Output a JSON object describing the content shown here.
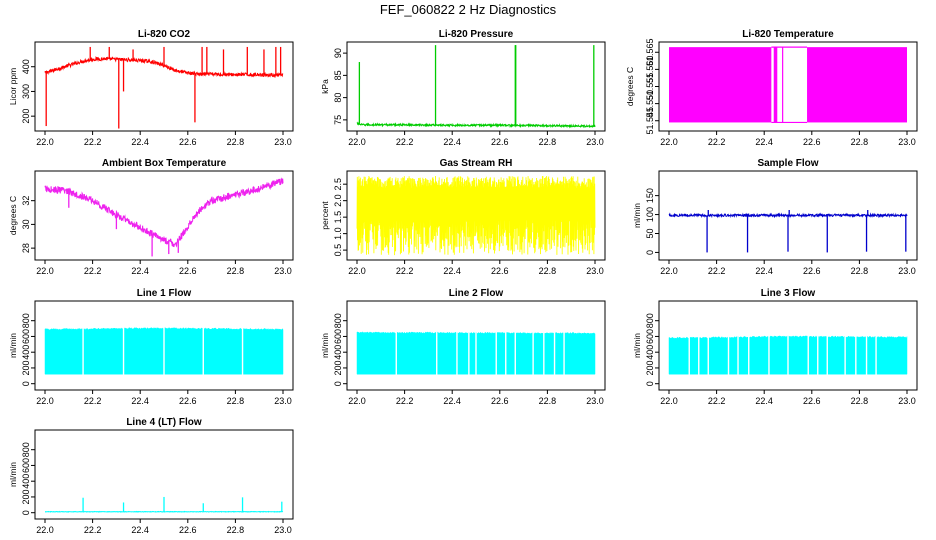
{
  "title": "FEF_060822  2 Hz Diagnostics",
  "chart_data": [
    {
      "type": "line",
      "title": "Li-820 CO2",
      "xlabel": "",
      "ylabel": "Licor ppm",
      "color": "#ff0000",
      "xlim": [
        22.0,
        23.0
      ],
      "ylim": [
        140,
        500
      ],
      "xticks": [
        "22.0",
        "22.2",
        "22.4",
        "22.6",
        "22.8",
        "23.0"
      ],
      "yticks": [
        {
          "v": 200,
          "l": "200"
        },
        {
          "v": 300,
          "l": "300"
        },
        {
          "v": 400,
          "l": "400"
        }
      ],
      "style": "noisy",
      "series": [
        {
          "name": "CO2",
          "x": [
            22.0,
            22.05,
            22.1,
            22.15,
            22.2,
            22.25,
            22.3,
            22.35,
            22.4,
            22.45,
            22.5,
            22.55,
            22.6,
            22.65,
            22.7,
            22.8,
            22.9,
            23.0
          ],
          "y": [
            375,
            390,
            405,
            420,
            430,
            432,
            430,
            428,
            425,
            420,
            405,
            385,
            375,
            370,
            370,
            368,
            368,
            366
          ]
        }
      ],
      "band": 14,
      "spikes": [
        {
          "x": 22.005,
          "y": 160
        },
        {
          "x": 22.31,
          "y": 150
        },
        {
          "x": 22.33,
          "y": 300
        },
        {
          "x": 22.63,
          "y": 175
        },
        {
          "x": 22.19,
          "y": 480
        },
        {
          "x": 22.27,
          "y": 480
        },
        {
          "x": 22.37,
          "y": 470
        },
        {
          "x": 22.5,
          "y": 480
        },
        {
          "x": 22.66,
          "y": 480
        },
        {
          "x": 22.68,
          "y": 480
        },
        {
          "x": 22.75,
          "y": 470
        },
        {
          "x": 22.85,
          "y": 480
        },
        {
          "x": 22.92,
          "y": 470
        },
        {
          "x": 22.97,
          "y": 480
        },
        {
          "x": 22.99,
          "y": 480
        }
      ]
    },
    {
      "type": "line",
      "title": "Li-820 Pressure",
      "xlabel": "",
      "ylabel": "kPa",
      "color": "#00cc00",
      "xlim": [
        22.0,
        23.0
      ],
      "ylim": [
        72.5,
        92.5
      ],
      "xticks": [
        "22.0",
        "22.2",
        "22.4",
        "22.6",
        "22.8",
        "23.0"
      ],
      "yticks": [
        {
          "v": 75,
          "l": "75"
        },
        {
          "v": 80,
          "l": "80"
        },
        {
          "v": 85,
          "l": "85"
        },
        {
          "v": 90,
          "l": "90"
        }
      ],
      "style": "noisy",
      "series": [
        {
          "name": "Pressure",
          "x": [
            22.0,
            22.02,
            22.2,
            22.4,
            22.6,
            22.8,
            23.0
          ],
          "y": [
            74.2,
            73.9,
            73.9,
            73.8,
            73.8,
            73.7,
            73.6
          ]
        }
      ],
      "band": 0.4,
      "spikes": [
        {
          "x": 22.01,
          "y": 88.0
        },
        {
          "x": 22.33,
          "y": 91.8
        },
        {
          "x": 22.665,
          "y": 91.8
        },
        {
          "x": 22.667,
          "y": 91.8
        },
        {
          "x": 22.995,
          "y": 91.8
        }
      ]
    },
    {
      "type": "area",
      "title": "Li-820 Temperature",
      "xlabel": "",
      "ylabel": "degrees C",
      "color": "#ff00ff",
      "xlim": [
        22.0,
        23.0
      ],
      "ylim": [
        51.542,
        51.568
      ],
      "xticks": [
        "22.0",
        "22.2",
        "22.4",
        "22.6",
        "22.8",
        "23.0"
      ],
      "yticks": [
        {
          "v": 51.545,
          "l": "51.545"
        },
        {
          "v": 51.55,
          "l": "51.550"
        },
        {
          "v": 51.555,
          "l": "51.555"
        },
        {
          "v": 51.56,
          "l": "51.560"
        },
        {
          "v": 51.565,
          "l": "51.565"
        }
      ],
      "style": "blocks",
      "blocks": [
        {
          "x0": 22.0,
          "x1": 22.43,
          "y0": 51.5445,
          "y1": 51.5665
        },
        {
          "x0": 22.44,
          "x1": 22.455,
          "y0": 51.5445,
          "y1": 51.5665
        },
        {
          "x0": 22.475,
          "x1": 22.48,
          "y0": 51.5445,
          "y1": 51.5665
        },
        {
          "x0": 22.58,
          "x1": 23.0,
          "y0": 51.5445,
          "y1": 51.5665
        }
      ],
      "hlines": [
        {
          "x0": 22.43,
          "x1": 22.58,
          "y": 51.5665
        },
        {
          "x0": 22.43,
          "x1": 22.58,
          "y": 51.5445
        }
      ]
    },
    {
      "type": "line",
      "title": "Ambient Box Temperature",
      "xlabel": "",
      "ylabel": "degrees C",
      "color": "#ee22ee",
      "xlim": [
        22.0,
        23.0
      ],
      "ylim": [
        27.0,
        34.5
      ],
      "xticks": [
        "22.0",
        "22.2",
        "22.4",
        "22.6",
        "22.8",
        "23.0"
      ],
      "yticks": [
        {
          "v": 28,
          "l": "28"
        },
        {
          "v": 30,
          "l": "30"
        },
        {
          "v": 32,
          "l": "32"
        }
      ],
      "style": "noisy",
      "series": [
        {
          "name": "Box temperature",
          "x": [
            22.0,
            22.1,
            22.2,
            22.3,
            22.4,
            22.5,
            22.55,
            22.6,
            22.65,
            22.7,
            22.8,
            22.9,
            23.0
          ],
          "y": [
            33.0,
            32.8,
            32.0,
            30.8,
            29.7,
            28.7,
            28.3,
            29.8,
            31.2,
            32.0,
            32.5,
            33.0,
            33.7
          ]
        }
      ],
      "band": 0.6,
      "spikes": [
        {
          "x": 22.45,
          "y": 27.3
        },
        {
          "x": 22.52,
          "y": 27.5
        },
        {
          "x": 22.56,
          "y": 27.6
        },
        {
          "x": 22.1,
          "y": 31.4
        },
        {
          "x": 22.3,
          "y": 29.6
        }
      ]
    },
    {
      "type": "line",
      "title": "Gas Stream RH",
      "xlabel": "",
      "ylabel": "percent",
      "color": "#ffff00",
      "xlim": [
        22.0,
        23.0
      ],
      "ylim": [
        0.2,
        2.9
      ],
      "xticks": [
        "22.0",
        "22.2",
        "22.4",
        "22.6",
        "22.8",
        "23.0"
      ],
      "yticks": [
        {
          "v": 0.5,
          "l": "0.5"
        },
        {
          "v": 1.0,
          "l": "1.0"
        },
        {
          "v": 1.5,
          "l": "1.5"
        },
        {
          "v": 2.0,
          "l": "2.0"
        },
        {
          "v": 2.5,
          "l": "2.5"
        }
      ],
      "style": "dense",
      "range": [
        0.35,
        2.75
      ]
    },
    {
      "type": "line",
      "title": "Sample Flow",
      "xlabel": "",
      "ylabel": "ml/min",
      "color": "#0000cc",
      "xlim": [
        22.0,
        23.0
      ],
      "ylim": [
        -20,
        215
      ],
      "xticks": [
        "22.0",
        "22.2",
        "22.4",
        "22.6",
        "22.8",
        "23.0"
      ],
      "yticks": [
        {
          "v": 0,
          "l": "0"
        },
        {
          "v": 50,
          "l": "50"
        },
        {
          "v": 100,
          "l": "100"
        },
        {
          "v": 150,
          "l": "150"
        }
      ],
      "style": "noisy",
      "series": [
        {
          "name": "Sample flow",
          "x": [
            22.0,
            23.0
          ],
          "y": [
            98,
            98
          ]
        }
      ],
      "band": 6,
      "spikes": [
        {
          "x": 22.16,
          "y": 0
        },
        {
          "x": 22.33,
          "y": 0
        },
        {
          "x": 22.5,
          "y": 2
        },
        {
          "x": 22.665,
          "y": 0
        },
        {
          "x": 22.83,
          "y": 2
        },
        {
          "x": 22.995,
          "y": 2
        },
        {
          "x": 22.165,
          "y": 112
        },
        {
          "x": 22.505,
          "y": 112
        },
        {
          "x": 22.835,
          "y": 112
        }
      ]
    },
    {
      "type": "area",
      "title": "Line 1 Flow",
      "xlabel": "",
      "ylabel": "ml/min",
      "color": "#00ffff",
      "xlim": [
        22.0,
        23.0
      ],
      "ylim": [
        -80,
        1050
      ],
      "xticks": [
        "22.0",
        "22.2",
        "22.4",
        "22.6",
        "22.8",
        "23.0"
      ],
      "yticks": [
        {
          "v": 0,
          "l": "0"
        },
        {
          "v": 200,
          "l": "200"
        },
        {
          "v": 400,
          "l": "400"
        },
        {
          "v": 600,
          "l": "600"
        },
        {
          "v": 800,
          "l": "800"
        }
      ],
      "style": "filled",
      "top": [
        {
          "x": 22.0,
          "y": 690
        },
        {
          "x": 22.5,
          "y": 705
        },
        {
          "x": 23.0,
          "y": 690
        }
      ],
      "base": 120,
      "gaps": [
        22.16,
        22.33,
        22.5,
        22.665,
        22.83
      ],
      "spikes": []
    },
    {
      "type": "area",
      "title": "Line 2 Flow",
      "xlabel": "",
      "ylabel": "ml/min",
      "color": "#00ffff",
      "xlim": [
        22.0,
        23.0
      ],
      "ylim": [
        -80,
        1050
      ],
      "xticks": [
        "22.0",
        "22.2",
        "22.4",
        "22.6",
        "22.8",
        "23.0"
      ],
      "yticks": [
        {
          "v": 0,
          "l": "0"
        },
        {
          "v": 200,
          "l": "200"
        },
        {
          "v": 400,
          "l": "400"
        },
        {
          "v": 600,
          "l": "600"
        },
        {
          "v": 800,
          "l": "800"
        }
      ],
      "style": "filled",
      "top": [
        {
          "x": 22.0,
          "y": 650
        },
        {
          "x": 23.0,
          "y": 640
        }
      ],
      "base": 120,
      "gaps": [
        22.165,
        22.335,
        22.42,
        22.47,
        22.5,
        22.585,
        22.625,
        22.665,
        22.74,
        22.785,
        22.83,
        22.87
      ],
      "spikes": []
    },
    {
      "type": "area",
      "title": "Line 3 Flow",
      "xlabel": "",
      "ylabel": "ml/min",
      "color": "#00ffff",
      "xlim": [
        22.0,
        23.0
      ],
      "ylim": [
        -80,
        1050
      ],
      "xticks": [
        "22.0",
        "22.2",
        "22.4",
        "22.6",
        "22.8",
        "23.0"
      ],
      "yticks": [
        {
          "v": 0,
          "l": "0"
        },
        {
          "v": 200,
          "l": "200"
        },
        {
          "v": 400,
          "l": "400"
        },
        {
          "v": 600,
          "l": "600"
        },
        {
          "v": 800,
          "l": "800"
        }
      ],
      "style": "filled",
      "top": [
        {
          "x": 22.0,
          "y": 580
        },
        {
          "x": 22.5,
          "y": 600
        },
        {
          "x": 23.0,
          "y": 590
        }
      ],
      "base": 120,
      "gaps": [
        22.085,
        22.125,
        22.165,
        22.25,
        22.29,
        22.335,
        22.42,
        22.5,
        22.585,
        22.625,
        22.665,
        22.74,
        22.785,
        22.83,
        22.87
      ],
      "spikes": []
    },
    {
      "type": "line",
      "title": "Line 4 (LT) Flow",
      "xlabel": "",
      "ylabel": "ml/min",
      "color": "#00ffff",
      "xlim": [
        22.0,
        23.0
      ],
      "ylim": [
        -80,
        1050
      ],
      "xticks": [
        "22.0",
        "22.2",
        "22.4",
        "22.6",
        "22.8",
        "23.0"
      ],
      "yticks": [
        {
          "v": 0,
          "l": "0"
        },
        {
          "v": 200,
          "l": "200"
        },
        {
          "v": 400,
          "l": "400"
        },
        {
          "v": 600,
          "l": "600"
        },
        {
          "v": 800,
          "l": "800"
        }
      ],
      "style": "noisy",
      "series": [
        {
          "name": "Line 4 flow",
          "x": [
            22.0,
            23.0
          ],
          "y": [
            12,
            12
          ]
        }
      ],
      "band": 6,
      "spikes": [
        {
          "x": 22.16,
          "y": 190
        },
        {
          "x": 22.33,
          "y": 130
        },
        {
          "x": 22.5,
          "y": 200
        },
        {
          "x": 22.665,
          "y": 120
        },
        {
          "x": 22.83,
          "y": 195
        },
        {
          "x": 22.995,
          "y": 140
        }
      ]
    }
  ]
}
